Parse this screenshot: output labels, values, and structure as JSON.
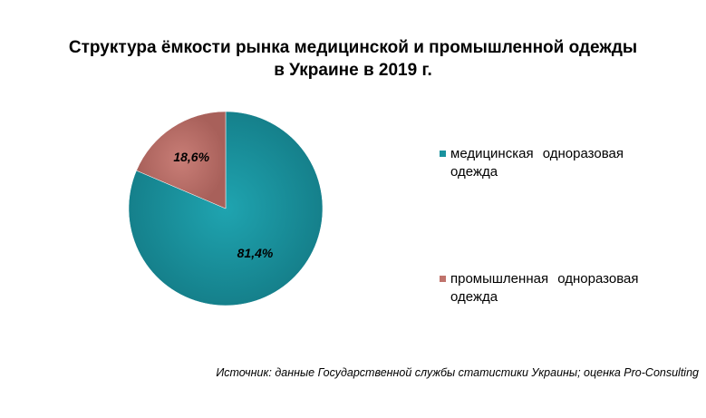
{
  "chart_data": {
    "type": "pie",
    "title_lines": [
      "Структура ёмкости рынка медицинской и промышленной одежды",
      "в Украине в 2019 г."
    ],
    "slices": [
      {
        "name": "медицинская одноразовая одежда",
        "value": 81.4,
        "label": "81,4%",
        "color": "#19929E"
      },
      {
        "name": "промышленная одноразовая одежда",
        "value": 18.6,
        "label": "18,6%",
        "color": "#C0736C"
      }
    ],
    "legend_position": "right",
    "source": "Источник: данные Государственной службы статистики Украины; оценка Pro-Consulting"
  }
}
